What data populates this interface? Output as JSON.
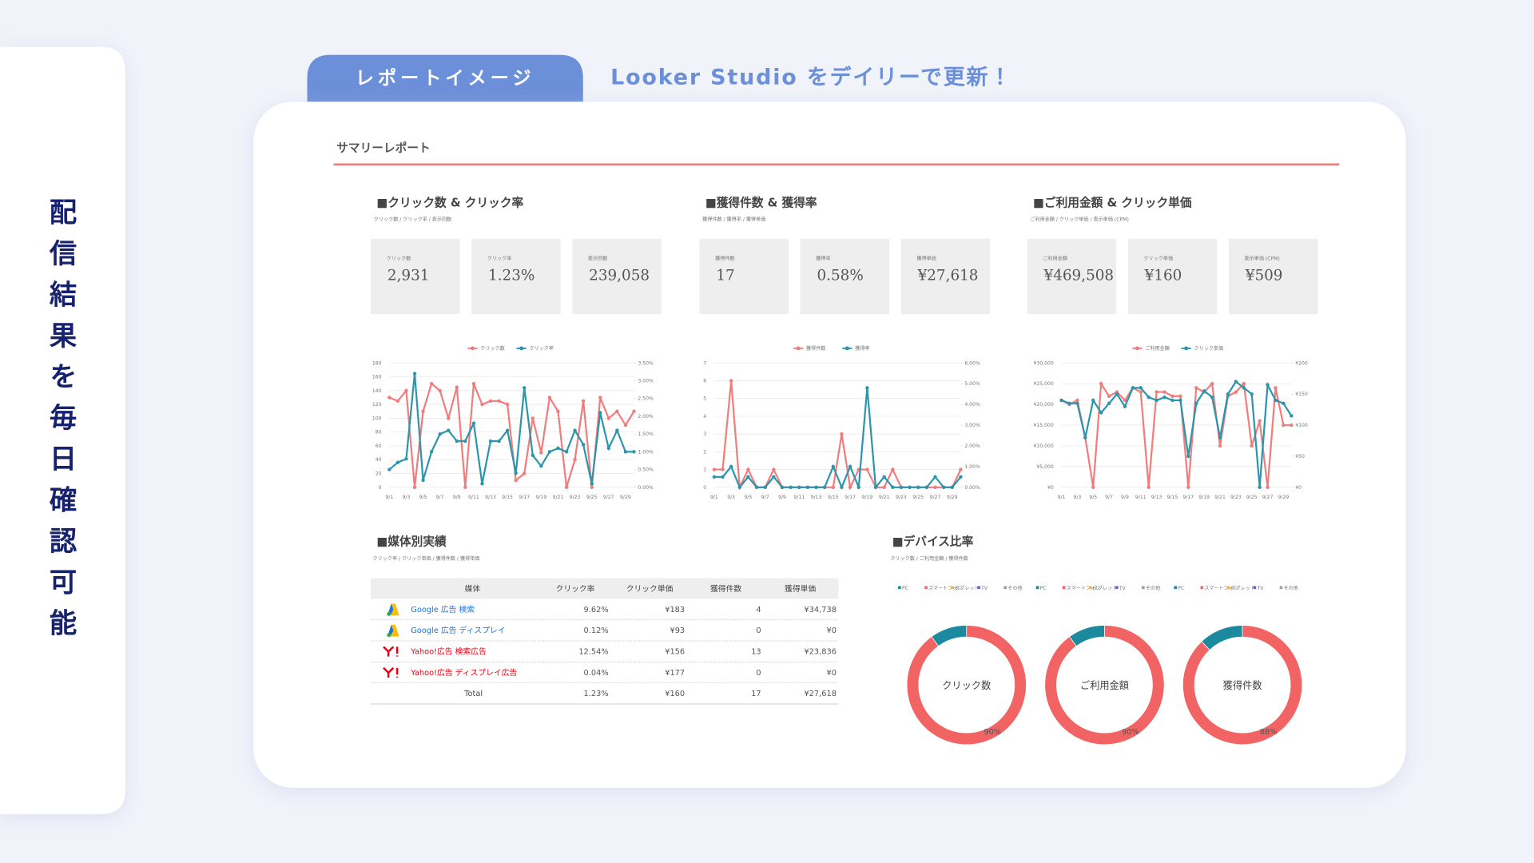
{
  "side_label": "配信結果を毎日確認可能",
  "tab": "レポートイメージ",
  "headline": "Looker Studio をデイリーで更新！",
  "report": {
    "title": "サマリーレポート",
    "sections": [
      {
        "title": "■クリック数 & クリック率",
        "subtitle": "クリック数 / クリック率 / 表示回数",
        "kpis": [
          {
            "label": "クリック数",
            "value": "2,931"
          },
          {
            "label": "クリック率",
            "value": "1.23%"
          },
          {
            "label": "表示回数",
            "value": "239,058"
          }
        ]
      },
      {
        "title": "■獲得件数 & 獲得率",
        "subtitle": "獲得件数 / 獲得率 / 獲得単価",
        "kpis": [
          {
            "label": "獲得件数",
            "value": "17"
          },
          {
            "label": "獲得率",
            "value": "0.58%"
          },
          {
            "label": "獲得単価",
            "value": "¥27,618"
          }
        ]
      },
      {
        "title": "■ご利用金額 & クリック単価",
        "subtitle": "ご利用金額 / クリック単価 / 表示単価 (CPM)",
        "kpis": [
          {
            "label": "ご利用金額",
            "value": "¥469,508"
          },
          {
            "label": "クリック単価",
            "value": "¥160"
          },
          {
            "label": "表示単価 (CPM)",
            "value": "¥509"
          }
        ]
      }
    ]
  },
  "table": {
    "title": "■媒体別実績",
    "subtitle": "クリック率 / クリック単価 / 獲得件数 / 獲得単価",
    "header": [
      "媒体",
      "クリック率",
      "クリック単価",
      "獲得件数",
      "獲得単価"
    ],
    "rows": [
      [
        "Google 広告 検索",
        "9.62%",
        "¥183",
        "4",
        "¥34,738"
      ],
      [
        "Google 広告 ディスプレイ",
        "0.12%",
        "¥93",
        "0",
        "¥0"
      ],
      [
        "Yahoo!広告 検索広告",
        "12.54%",
        "¥156",
        "13",
        "¥23,836"
      ],
      [
        "Yahoo!広告 ディスプレイ広告",
        "0.04%",
        "¥177",
        "0",
        "¥0"
      ],
      [
        "Total",
        "1.23%",
        "¥160",
        "17",
        "¥27,618"
      ]
    ]
  },
  "device": {
    "title": "■デバイス比率",
    "subtitle": "クリック数 / ご利用金額 / 獲得件数"
  },
  "chart_data": [
    {
      "type": "line",
      "grid": true,
      "categories": [
        "9/1",
        null,
        "9/3",
        null,
        "9/5",
        null,
        "9/7",
        null,
        "9/9",
        null,
        "9/11",
        null,
        "9/13",
        null,
        "9/15",
        null,
        "9/17",
        null,
        "9/19",
        null,
        "9/21",
        null,
        "9/23",
        null,
        "9/25",
        null,
        "9/27",
        null,
        "9/29",
        null
      ],
      "ylim": [
        0,
        180
      ],
      "yticks": [
        0,
        20,
        40,
        60,
        80,
        100,
        120,
        140,
        160,
        180
      ],
      "y2lim": [
        0,
        3.5
      ],
      "y2ticks": [
        {
          "value": 0,
          "label": "0.00%"
        },
        {
          "value": 0.5,
          "label": "0.50%"
        },
        {
          "value": 1,
          "label": "1.00%"
        },
        {
          "value": 1.5,
          "label": "1.50%"
        },
        {
          "value": 2,
          "label": "2.00%"
        },
        {
          "value": 2.5,
          "label": "2.50%"
        },
        {
          "value": 3,
          "label": "3.00%"
        },
        {
          "value": 3.5,
          "label": "3.50%"
        }
      ],
      "series": [
        {
          "name": "クリック数",
          "color": "#f07c7c",
          "values": [
            130,
            125,
            140,
            0,
            110,
            150,
            140,
            100,
            145,
            0,
            150,
            120,
            125,
            125,
            120,
            10,
            20,
            100,
            50,
            130,
            110,
            0,
            40,
            125,
            0,
            130,
            100,
            110,
            90,
            110
          ]
        },
        {
          "name": "クリック率",
          "color": "#2a95ab",
          "axis": "y2",
          "values": [
            0.5,
            0.7,
            0.8,
            3.2,
            0.2,
            1.0,
            1.5,
            1.6,
            1.3,
            1.3,
            1.8,
            0.1,
            1.3,
            1.3,
            1.6,
            0.4,
            2.8,
            0.9,
            0.6,
            1.0,
            1.1,
            1.0,
            1.6,
            1.2,
            0.1,
            2.1,
            1.1,
            1.6,
            1.0,
            1.0
          ]
        }
      ]
    },
    {
      "type": "line",
      "grid": true,
      "categories": [
        "9/1",
        null,
        "9/3",
        null,
        "9/5",
        null,
        "9/7",
        null,
        "9/9",
        null,
        "9/11",
        null,
        "9/13",
        null,
        "9/15",
        null,
        "9/17",
        null,
        "9/19",
        null,
        "9/21",
        null,
        "9/23",
        null,
        "9/25",
        null,
        "9/27",
        null,
        "9/29",
        null
      ],
      "ylim": [
        0,
        7
      ],
      "yticks": [
        0,
        1,
        2,
        3,
        4,
        5,
        6,
        7
      ],
      "y2lim": [
        0,
        6
      ],
      "y2ticks": [
        {
          "value": 0,
          "label": "0.00%"
        },
        {
          "value": 1,
          "label": "1.00%"
        },
        {
          "value": 2,
          "label": "2.00%"
        },
        {
          "value": 3,
          "label": "3.00%"
        },
        {
          "value": 4,
          "label": "4.00%"
        },
        {
          "value": 5,
          "label": "5.00%"
        },
        {
          "value": 6,
          "label": "6.00%"
        }
      ],
      "series": [
        {
          "name": "獲得件数",
          "color": "#f07c7c",
          "values": [
            1,
            1,
            6,
            0,
            1,
            0,
            0,
            1,
            0,
            0,
            0,
            0,
            0,
            0,
            0,
            3,
            0,
            1,
            1,
            0,
            0,
            1,
            0,
            0,
            0,
            0,
            0,
            0,
            0,
            1
          ]
        },
        {
          "name": "獲得率",
          "color": "#2a95ab",
          "axis": "y2",
          "values": [
            0.5,
            0.5,
            1.0,
            0,
            0.5,
            0,
            0,
            0.5,
            0,
            0,
            0,
            0,
            0,
            0,
            1.0,
            0,
            1.0,
            0,
            4.8,
            0,
            0.5,
            0,
            0,
            0,
            0,
            0,
            0.5,
            0,
            0,
            0.5
          ]
        }
      ]
    },
    {
      "type": "line",
      "grid": true,
      "categories": [
        "9/1",
        null,
        "9/3",
        null,
        "9/5",
        null,
        "9/7",
        null,
        "9/9",
        null,
        "9/11",
        null,
        "9/13",
        null,
        "9/15",
        null,
        "9/17",
        null,
        "9/19",
        null,
        "9/21",
        null,
        "9/23",
        null,
        "9/25",
        null,
        "9/27",
        null,
        "9/29",
        null
      ],
      "ylim": [
        0,
        30000
      ],
      "yticks": [
        {
          "value": 0,
          "label": "¥0"
        },
        {
          "value": 5000,
          "label": "¥5,000"
        },
        {
          "value": 10000,
          "label": "¥10,000"
        },
        {
          "value": 15000,
          "label": "¥15,000"
        },
        {
          "value": 20000,
          "label": "¥20,000"
        },
        {
          "value": 25000,
          "label": "¥25,000"
        },
        {
          "value": 30000,
          "label": "¥30,000"
        }
      ],
      "y2lim": [
        0,
        200
      ],
      "y2ticks": [
        {
          "value": 0,
          "label": "¥0"
        },
        {
          "value": 50,
          "label": "¥50"
        },
        {
          "value": 100,
          "label": "¥100"
        },
        {
          "value": 150,
          "label": "¥150"
        },
        {
          "value": 200,
          "label": "¥200"
        }
      ],
      "series": [
        {
          "name": "ご利用金額",
          "color": "#f07c7c",
          "values": [
            21000,
            20000,
            21000,
            12000,
            0,
            25000,
            22000,
            23000,
            21000,
            24000,
            23000,
            0,
            23000,
            23000,
            22000,
            22000,
            0,
            24000,
            23000,
            25000,
            10000,
            22000,
            23000,
            25000,
            10000,
            16000,
            0,
            24000,
            15000,
            15000
          ]
        },
        {
          "name": "クリック単価",
          "color": "#2a95ab",
          "axis": "y2",
          "values": [
            140,
            135,
            135,
            80,
            140,
            120,
            135,
            150,
            130,
            160,
            160,
            145,
            140,
            145,
            140,
            140,
            50,
            135,
            155,
            145,
            80,
            150,
            170,
            160,
            150,
            0,
            165,
            140,
            135,
            115
          ]
        }
      ]
    },
    {
      "type": "donut",
      "title": "クリック数",
      "categories": [
        "PC",
        "スマートフォン",
        "タブレット",
        "TV",
        "その他"
      ],
      "colors": [
        "#1c8a9e",
        "#f26464",
        "#f2b64a",
        "#7e57c2",
        "#9e9e9e"
      ],
      "values": [
        10,
        90,
        0,
        0,
        0
      ],
      "value_labels": [
        null,
        "90%",
        null,
        null,
        null
      ]
    },
    {
      "type": "donut",
      "title": "ご利用金額",
      "categories": [
        "PC",
        "スマートフォン",
        "タブレット",
        "TV",
        "その他"
      ],
      "colors": [
        "#1c8a9e",
        "#f26464",
        "#f2b64a",
        "#7e57c2",
        "#9e9e9e"
      ],
      "values": [
        10,
        90,
        0,
        0,
        0
      ],
      "value_labels": [
        null,
        "90%",
        null,
        null,
        null
      ]
    },
    {
      "type": "donut",
      "title": "獲得件数",
      "categories": [
        "PC",
        "スマートフォン",
        "タブレット",
        "TV",
        "その他"
      ],
      "colors": [
        "#1c8a9e",
        "#f26464",
        "#f2b64a",
        "#7e57c2",
        "#9e9e9e"
      ],
      "values": [
        12,
        88,
        0,
        0,
        0
      ],
      "value_labels": [
        null,
        "88%",
        null,
        null,
        null
      ]
    }
  ]
}
